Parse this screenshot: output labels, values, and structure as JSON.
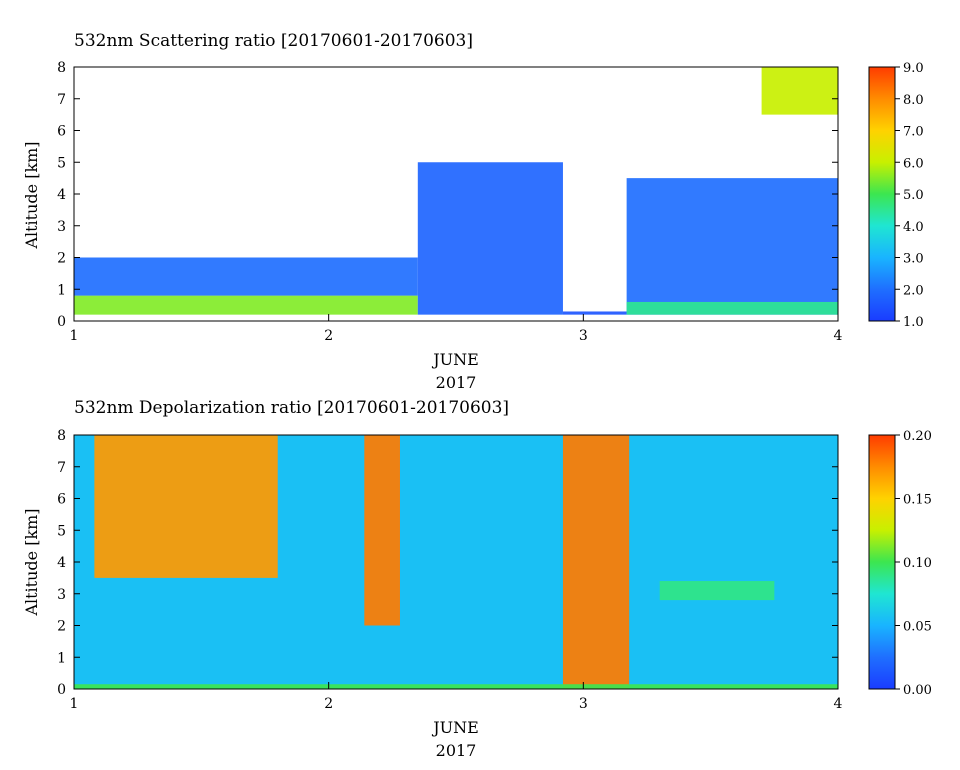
{
  "chart_data": [
    {
      "type": "heatmap",
      "title": "532nm Scattering ratio [20170601-20170603]",
      "xlabel_line1": "JUNE",
      "xlabel_line2": "2017",
      "ylabel": "Altitude [km]",
      "x_ticks": [
        "1",
        "2",
        "3",
        "4"
      ],
      "y_ticks": [
        "0",
        "1",
        "2",
        "3",
        "4",
        "5",
        "6",
        "7",
        "8"
      ],
      "xlim": [
        1,
        4
      ],
      "ylim": [
        0,
        8
      ],
      "colorbar": {
        "range": [
          1.0,
          9.0
        ],
        "ticks": [
          "1.0",
          "2.0",
          "3.0",
          "4.0",
          "5.0",
          "6.0",
          "7.0",
          "8.0",
          "9.0"
        ]
      },
      "features": [
        {
          "x0": 1.0,
          "x1": 2.35,
          "y0": 0.2,
          "y1": 0.8,
          "value": 5.5
        },
        {
          "x0": 1.0,
          "x1": 2.35,
          "y0": 0.8,
          "y1": 2.0,
          "value": 2.0
        },
        {
          "x0": 2.35,
          "x1": 2.92,
          "y0": 0.2,
          "y1": 5.0,
          "value": 1.8
        },
        {
          "x0": 2.92,
          "x1": 3.17,
          "y0": 0.2,
          "y1": 0.3,
          "value": 1.5
        },
        {
          "x0": 3.17,
          "x1": 4.0,
          "y0": 0.2,
          "y1": 4.5,
          "value": 2.0
        },
        {
          "x0": 3.17,
          "x1": 4.0,
          "y0": 0.2,
          "y1": 0.6,
          "value": 4.5
        },
        {
          "x0": 3.7,
          "x1": 4.0,
          "y0": 6.5,
          "y1": 8.0,
          "value": 6.0
        }
      ]
    },
    {
      "type": "heatmap",
      "title": "532nm Depolarization ratio [20170601-20170603]",
      "xlabel_line1": "JUNE",
      "xlabel_line2": "2017",
      "ylabel": "Altitude [km]",
      "x_ticks": [
        "1",
        "2",
        "3",
        "4"
      ],
      "y_ticks": [
        "0",
        "1",
        "2",
        "3",
        "4",
        "5",
        "6",
        "7",
        "8"
      ],
      "xlim": [
        1,
        4
      ],
      "ylim": [
        0,
        8
      ],
      "colorbar": {
        "range": [
          0.0,
          0.2
        ],
        "ticks": [
          "0.00",
          "0.05",
          "0.10",
          "0.15",
          "0.20"
        ]
      },
      "features": [
        {
          "x0": 1.08,
          "x1": 1.8,
          "y0": 3.5,
          "y1": 8.0,
          "value": 0.17
        },
        {
          "x0": 2.14,
          "x1": 2.28,
          "y0": 2.0,
          "y1": 8.0,
          "value": 0.18
        },
        {
          "x0": 2.92,
          "x1": 3.18,
          "y0": 0.0,
          "y1": 8.0,
          "value": 0.18
        },
        {
          "x0": 3.3,
          "x1": 3.75,
          "y0": 2.8,
          "y1": 3.4,
          "value": 0.09
        },
        {
          "x0": 1.0,
          "x1": 4.0,
          "y0": 0.0,
          "y1": 0.15,
          "value": 0.1
        }
      ]
    }
  ],
  "colors": {
    "colormap": [
      "#1a3cff",
      "#1f6fff",
      "#19b4ff",
      "#1fe6d2",
      "#3ce650",
      "#c8f000",
      "#ffd200",
      "#ff8c00",
      "#ff3c00"
    ]
  }
}
